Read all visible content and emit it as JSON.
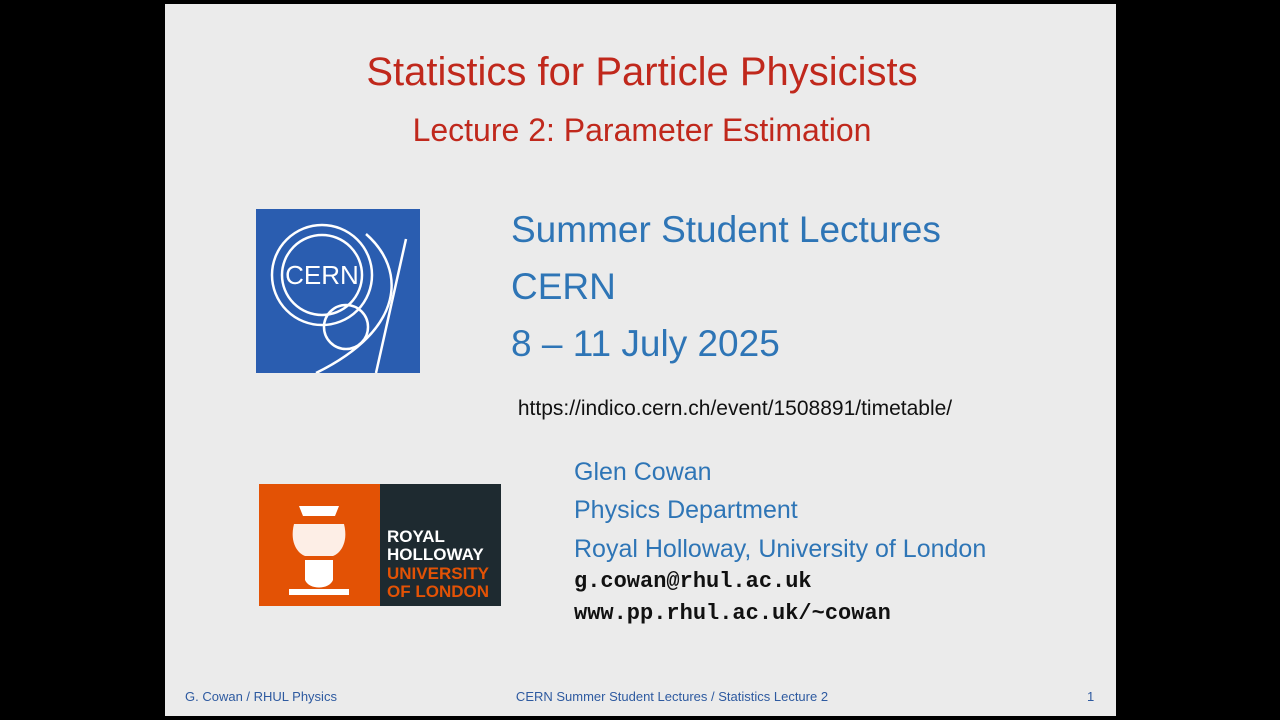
{
  "slide": {
    "title": "Statistics for Particle Physicists",
    "subtitle": "Lecture 2:  Parameter Estimation",
    "event": {
      "lines": [
        "Summer Student Lectures",
        "CERN",
        "8 – 11 July 2025"
      ]
    },
    "url": "https://indico.cern.ch/event/1508891/timetable/",
    "author": {
      "lines": [
        "Glen Cowan",
        "Physics Department",
        "Royal Holloway, University of London"
      ],
      "email": "g.cowan@rhul.ac.uk",
      "web": "www.pp.rhul.ac.uk/~cowan"
    },
    "logos": {
      "cern": "CERN",
      "rhul": [
        "ROYAL",
        "HOLLOWAY",
        "UNIVERSITY",
        "OF LONDON"
      ]
    },
    "footer": {
      "left": "G. Cowan / RHUL Physics",
      "center": "CERN Summer Student Lectures / Statistics Lecture 2",
      "page": 1
    }
  }
}
